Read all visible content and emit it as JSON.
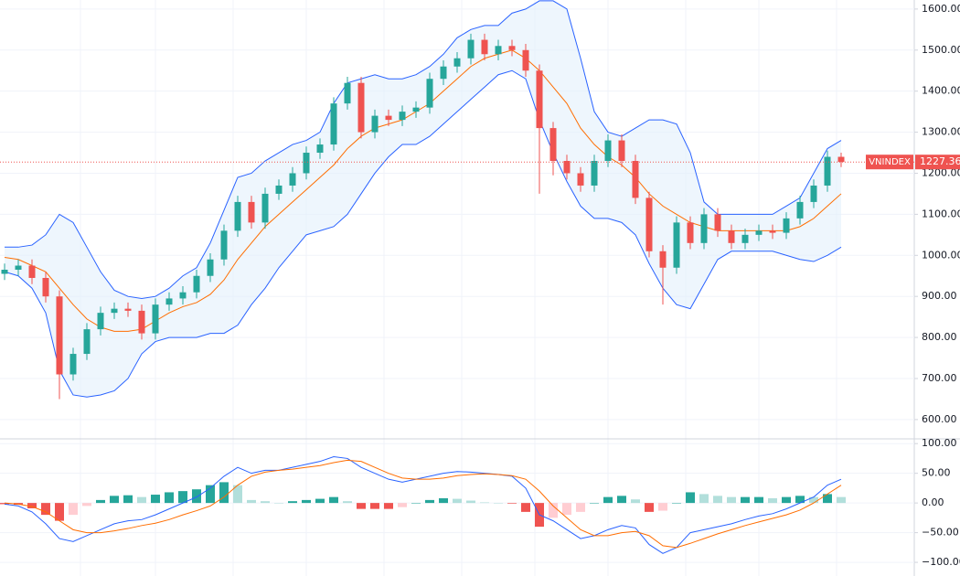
{
  "chart_data": {
    "type": "candlestick",
    "symbol": "VNINDEX",
    "last_price": 1227.36,
    "up_color": "#26a69a",
    "down_color": "#ef5350",
    "open": [
      955,
      965,
      975,
      945,
      900,
      710,
      760,
      820,
      860,
      870,
      865,
      810,
      880,
      895,
      910,
      950,
      990,
      1060,
      1130,
      1080,
      1150,
      1170,
      1200,
      1250,
      1270,
      1370,
      1420,
      1300,
      1340,
      1330,
      1350,
      1360,
      1430,
      1460,
      1480,
      1525,
      1490,
      1510,
      1500,
      1450,
      1310,
      1230,
      1200,
      1170,
      1230,
      1280,
      1230,
      1140,
      1010,
      970,
      1080,
      1030,
      1100,
      1060,
      1030,
      1050,
      1060,
      1055,
      1090,
      1130,
      1170,
      1240
    ],
    "high": [
      980,
      990,
      990,
      960,
      915,
      775,
      835,
      875,
      885,
      885,
      880,
      895,
      910,
      925,
      965,
      1005,
      1075,
      1145,
      1145,
      1165,
      1185,
      1215,
      1265,
      1285,
      1385,
      1435,
      1435,
      1355,
      1355,
      1365,
      1375,
      1445,
      1475,
      1495,
      1540,
      1540,
      1525,
      1525,
      1515,
      1465,
      1325,
      1245,
      1215,
      1245,
      1295,
      1295,
      1245,
      1155,
      1025,
      1095,
      1095,
      1115,
      1115,
      1075,
      1065,
      1075,
      1075,
      1105,
      1145,
      1185,
      1255,
      1250
    ],
    "low": [
      940,
      950,
      930,
      885,
      650,
      695,
      745,
      805,
      845,
      850,
      795,
      795,
      865,
      880,
      895,
      935,
      975,
      1045,
      1065,
      1065,
      1135,
      1155,
      1185,
      1235,
      1255,
      1355,
      1285,
      1285,
      1315,
      1315,
      1335,
      1345,
      1415,
      1445,
      1465,
      1475,
      1475,
      1485,
      1435,
      1150,
      1195,
      1185,
      1155,
      1155,
      1215,
      1215,
      1125,
      995,
      880,
      955,
      1015,
      1015,
      1045,
      1015,
      1015,
      1035,
      1040,
      1040,
      1075,
      1115,
      1155,
      1215
    ],
    "close": [
      965,
      975,
      945,
      900,
      710,
      760,
      820,
      860,
      870,
      865,
      810,
      880,
      895,
      910,
      950,
      990,
      1060,
      1130,
      1080,
      1150,
      1170,
      1200,
      1250,
      1270,
      1370,
      1420,
      1300,
      1340,
      1330,
      1350,
      1360,
      1430,
      1460,
      1480,
      1525,
      1490,
      1510,
      1500,
      1450,
      1310,
      1230,
      1200,
      1170,
      1230,
      1280,
      1230,
      1140,
      1010,
      970,
      1080,
      1030,
      1100,
      1060,
      1030,
      1050,
      1060,
      1055,
      1090,
      1130,
      1170,
      1240,
      1227.36
    ],
    "bollinger": {
      "band_color": "#2962ff",
      "middle_color": "#ff6d00",
      "fill": "#e3f0fb",
      "upper": [
        1020,
        1020,
        1025,
        1050,
        1100,
        1080,
        1020,
        960,
        915,
        900,
        895,
        900,
        920,
        950,
        970,
        1030,
        1110,
        1190,
        1200,
        1230,
        1250,
        1270,
        1280,
        1300,
        1370,
        1420,
        1430,
        1440,
        1430,
        1430,
        1440,
        1460,
        1490,
        1530,
        1550,
        1560,
        1560,
        1590,
        1600,
        1620,
        1620,
        1600,
        1480,
        1350,
        1300,
        1290,
        1310,
        1330,
        1330,
        1320,
        1250,
        1130,
        1100,
        1100,
        1100,
        1100,
        1100,
        1120,
        1140,
        1200,
        1260,
        1280
      ],
      "middle": [
        995,
        990,
        975,
        960,
        920,
        880,
        845,
        825,
        815,
        815,
        820,
        840,
        860,
        875,
        885,
        905,
        940,
        990,
        1030,
        1070,
        1100,
        1130,
        1160,
        1190,
        1220,
        1260,
        1290,
        1310,
        1320,
        1330,
        1350,
        1370,
        1400,
        1430,
        1460,
        1480,
        1490,
        1500,
        1480,
        1450,
        1410,
        1370,
        1310,
        1270,
        1240,
        1220,
        1190,
        1150,
        1120,
        1100,
        1080,
        1070,
        1060,
        1060,
        1060,
        1060,
        1060,
        1060,
        1070,
        1090,
        1120,
        1150
      ],
      "lower": [
        960,
        950,
        920,
        860,
        720,
        660,
        655,
        660,
        670,
        700,
        760,
        790,
        800,
        800,
        800,
        810,
        810,
        830,
        880,
        920,
        970,
        1010,
        1050,
        1060,
        1070,
        1100,
        1150,
        1200,
        1240,
        1270,
        1270,
        1290,
        1320,
        1350,
        1380,
        1410,
        1440,
        1450,
        1430,
        1330,
        1250,
        1180,
        1120,
        1090,
        1090,
        1080,
        1050,
        980,
        920,
        880,
        870,
        930,
        990,
        1010,
        1010,
        1010,
        1010,
        1000,
        990,
        985,
        1000,
        1020
      ]
    },
    "ylim": [
      553,
      1622
    ],
    "yticks": [
      {
        "value": 1600,
        "label": "1600.00"
      },
      {
        "value": 1500,
        "label": "1500.00"
      },
      {
        "value": 1400,
        "label": "1400.00"
      },
      {
        "value": 1300,
        "label": "1300.00"
      },
      {
        "value": 1200,
        "label": "1200.00"
      },
      {
        "value": 1100,
        "label": "1100.00"
      },
      {
        "value": 1000,
        "label": "1000.00"
      },
      {
        "value": 900,
        "label": "900.00"
      },
      {
        "value": 800,
        "label": "800.00"
      },
      {
        "value": 700,
        "label": "700.00"
      },
      {
        "value": 600,
        "label": "600.00"
      }
    ],
    "macd": {
      "macd_color": "#2962ff",
      "signal_color": "#ff6d00",
      "histogram_colors": {
        "up_rising": "#26a69a",
        "up_falling": "#b2dfdb",
        "down_falling": "#ef5350",
        "down_rising": "#ffcdd2"
      },
      "macd": [
        -2,
        -5,
        -15,
        -35,
        -60,
        -65,
        -55,
        -45,
        -35,
        -30,
        -28,
        -20,
        -10,
        0,
        10,
        25,
        45,
        60,
        50,
        55,
        55,
        60,
        65,
        70,
        78,
        75,
        60,
        50,
        40,
        35,
        40,
        45,
        50,
        53,
        52,
        50,
        48,
        45,
        25,
        -20,
        -30,
        -45,
        -60,
        -55,
        -45,
        -38,
        -42,
        -70,
        -85,
        -75,
        -50,
        -45,
        -40,
        -35,
        -28,
        -22,
        -18,
        -10,
        0,
        10,
        30,
        40
      ],
      "signal": [
        0,
        -2,
        -6,
        -15,
        -30,
        -45,
        -50,
        -50,
        -47,
        -43,
        -38,
        -34,
        -28,
        -20,
        -13,
        -5,
        10,
        30,
        45,
        52,
        55,
        57,
        60,
        63,
        68,
        72,
        70,
        60,
        50,
        42,
        40,
        40,
        42,
        46,
        48,
        49,
        48,
        46,
        40,
        20,
        -5,
        -25,
        -45,
        -55,
        -55,
        -50,
        -48,
        -55,
        -72,
        -75,
        -68,
        -60,
        -52,
        -45,
        -38,
        -32,
        -26,
        -20,
        -12,
        0,
        15,
        30
      ],
      "histogram": [
        -2,
        -3,
        -9,
        -20,
        -30,
        -20,
        -5,
        5,
        12,
        13,
        10,
        14,
        18,
        20,
        23,
        30,
        35,
        30,
        5,
        3,
        0,
        3,
        5,
        7,
        10,
        3,
        -10,
        -10,
        -10,
        -7,
        0,
        5,
        8,
        7,
        4,
        1,
        0,
        -1,
        -15,
        -40,
        -25,
        -20,
        -15,
        0,
        10,
        12,
        6,
        -15,
        -13,
        0,
        18,
        15,
        12,
        10,
        10,
        10,
        8,
        10,
        12,
        10,
        15,
        10
      ],
      "ylim": [
        -123,
        108
      ],
      "yticks": [
        {
          "value": 100,
          "label": "100.00"
        },
        {
          "value": 50,
          "label": "50.00"
        },
        {
          "value": 0,
          "label": "0.00"
        },
        {
          "value": -50,
          "label": "−50.00"
        },
        {
          "value": -100,
          "label": "−100.00"
        }
      ]
    }
  }
}
